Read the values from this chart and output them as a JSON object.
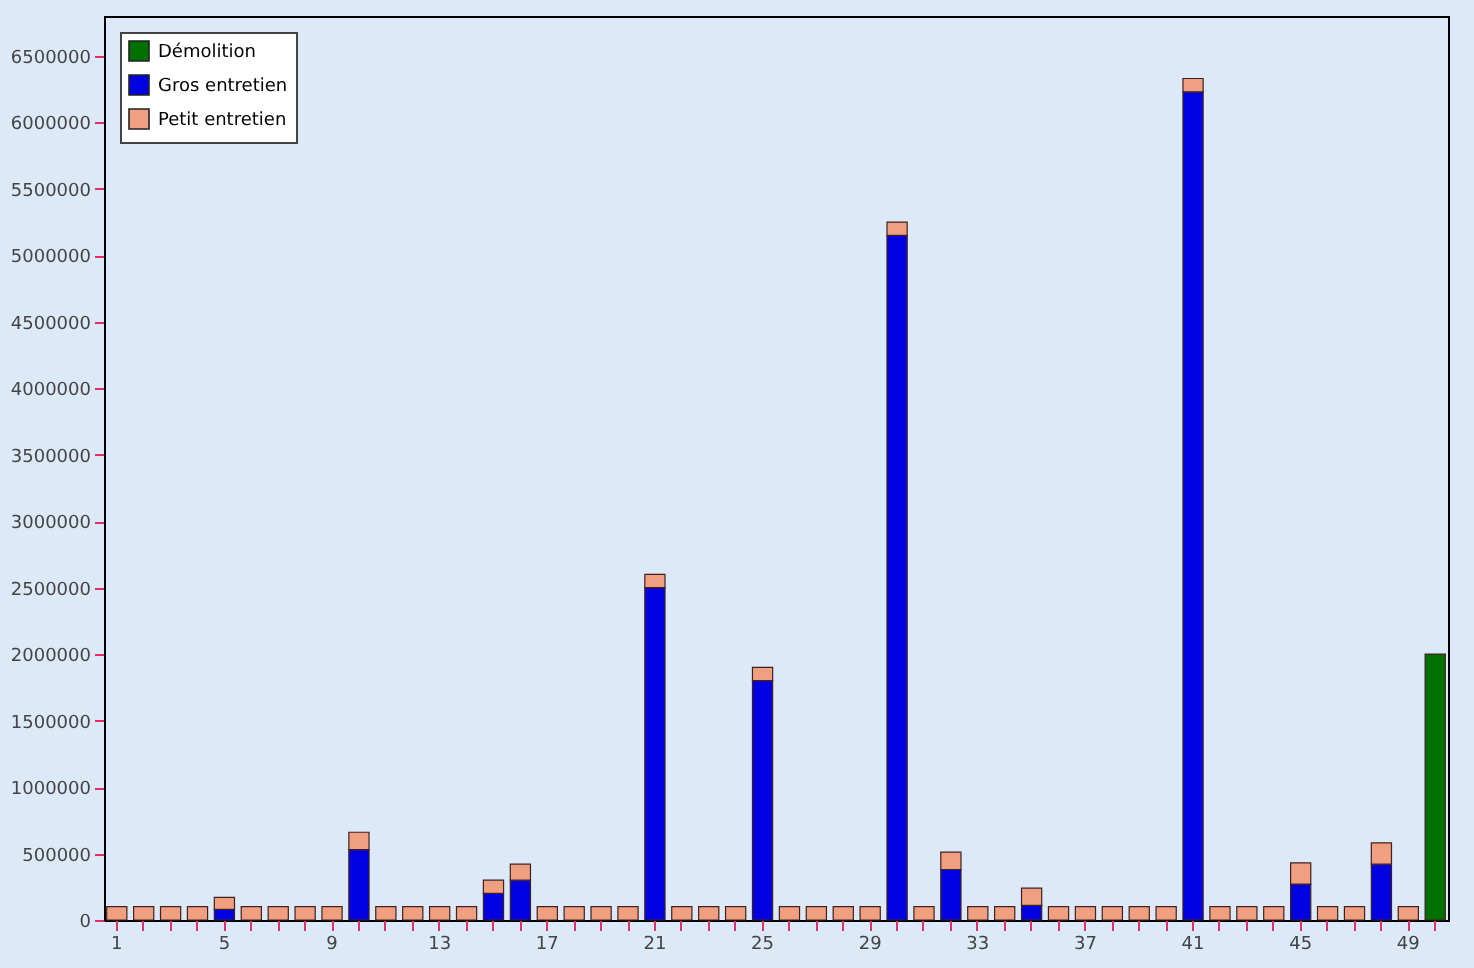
{
  "chart_data": {
    "type": "bar",
    "stacked": true,
    "legend": "top left",
    "grid": false,
    "categories": [
      "1",
      null,
      null,
      null,
      "5",
      null,
      null,
      null,
      "9",
      null,
      null,
      null,
      "13",
      null,
      null,
      null,
      "17",
      null,
      null,
      null,
      "21",
      null,
      null,
      null,
      "25",
      null,
      null,
      null,
      "29",
      null,
      null,
      null,
      "33",
      null,
      null,
      null,
      "37",
      null,
      null,
      null,
      "41",
      null,
      null,
      null,
      "45",
      null,
      null,
      null,
      "49",
      null
    ],
    "ylim": [
      0,
      6800000
    ],
    "yticks": [
      0,
      500000,
      1000000,
      1500000,
      2000000,
      2500000,
      3000000,
      3500000,
      4000000,
      4500000,
      5000000,
      5500000,
      6000000,
      6500000
    ],
    "series": [
      {
        "name": "Démolition",
        "color": "#007000",
        "values": [
          null,
          null,
          null,
          null,
          null,
          null,
          null,
          null,
          null,
          null,
          null,
          null,
          null,
          null,
          null,
          null,
          null,
          null,
          null,
          null,
          null,
          null,
          null,
          null,
          null,
          null,
          null,
          null,
          null,
          null,
          null,
          null,
          null,
          null,
          null,
          null,
          null,
          null,
          null,
          null,
          null,
          null,
          null,
          null,
          null,
          null,
          null,
          null,
          null,
          2000000
        ]
      },
      {
        "name": "Gros entretien",
        "color": "#0000e0",
        "values": [
          null,
          null,
          null,
          null,
          80000,
          null,
          null,
          null,
          null,
          530000,
          null,
          null,
          null,
          null,
          200000,
          300000,
          null,
          null,
          null,
          null,
          2500000,
          null,
          null,
          null,
          1800000,
          null,
          null,
          null,
          null,
          5150000,
          null,
          380000,
          null,
          null,
          110000,
          null,
          null,
          null,
          null,
          null,
          6230000,
          null,
          null,
          null,
          270000,
          null,
          null,
          420000,
          null,
          null
        ]
      },
      {
        "name": "Petit entretien",
        "color": "#f0a080",
        "values": [
          100000,
          100000,
          100000,
          100000,
          90000,
          100000,
          100000,
          100000,
          100000,
          130000,
          100000,
          100000,
          100000,
          100000,
          100000,
          120000,
          100000,
          100000,
          100000,
          100000,
          100000,
          100000,
          100000,
          100000,
          100000,
          100000,
          100000,
          100000,
          100000,
          100000,
          100000,
          130000,
          100000,
          100000,
          130000,
          100000,
          100000,
          100000,
          100000,
          100000,
          100000,
          100000,
          100000,
          100000,
          160000,
          100000,
          100000,
          160000,
          100000,
          null
        ]
      }
    ]
  }
}
